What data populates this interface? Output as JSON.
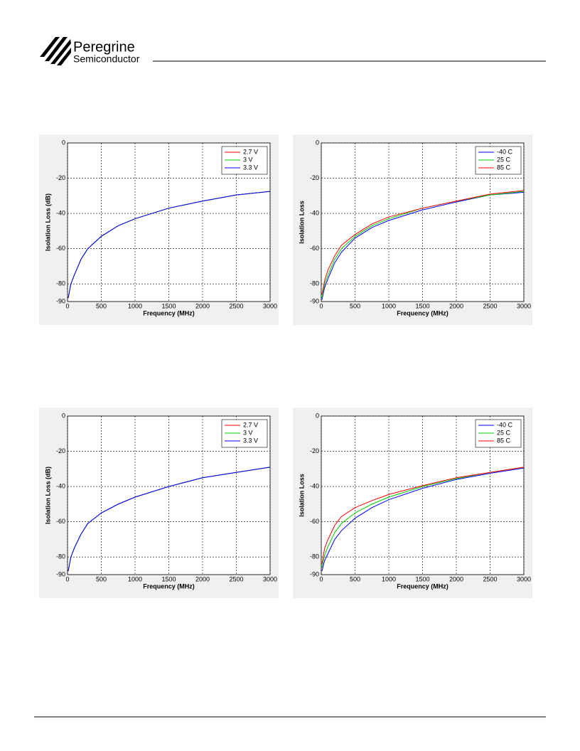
{
  "header": {
    "brand": "Peregrine",
    "subbrand": "Semiconductor"
  },
  "chart_data": [
    {
      "type": "line",
      "xlabel": "Frequency (MHz)",
      "ylabel": "Isolation Loss (dB)",
      "x": [
        10,
        50,
        100,
        200,
        300,
        500,
        750,
        1000,
        1500,
        2000,
        2500,
        3000
      ],
      "xlim": [
        0,
        3000
      ],
      "xticks": [
        0,
        500,
        1000,
        1500,
        2000,
        2500,
        3000
      ],
      "ylim": [
        -90,
        0
      ],
      "yticks": [
        -90,
        -80,
        -60,
        -40,
        -20,
        0
      ],
      "grid": true,
      "legend": "upper right",
      "series": [
        {
          "name": "2.7 V",
          "color": "#ff0000",
          "values": [
            -88,
            -80,
            -75,
            -66,
            -60,
            -53,
            -47,
            -43,
            -37,
            -33,
            -29.5,
            -27.5
          ]
        },
        {
          "name": "3 V",
          "color": "#00cc00",
          "values": [
            -88,
            -80,
            -75,
            -66,
            -60,
            -53,
            -47,
            -43,
            -37,
            -33,
            -29.5,
            -27.5
          ]
        },
        {
          "name": "3.3 V",
          "color": "#0000ff",
          "values": [
            -88,
            -80,
            -75,
            -66,
            -60,
            -53,
            -47,
            -43,
            -37,
            -33,
            -29.5,
            -27.5
          ]
        }
      ]
    },
    {
      "type": "line",
      "xlabel": "Frequency (MHz)",
      "ylabel": "Isolation Loss",
      "x": [
        10,
        50,
        100,
        200,
        300,
        500,
        750,
        1000,
        1500,
        2000,
        2500,
        3000
      ],
      "xlim": [
        0,
        3000
      ],
      "xticks": [
        0,
        500,
        1000,
        1500,
        2000,
        2500,
        3000
      ],
      "ylim": [
        -90,
        0
      ],
      "yticks": [
        -90,
        -80,
        -60,
        -40,
        -20,
        0
      ],
      "grid": true,
      "legend": "upper right",
      "series": [
        {
          "name": "-40 C",
          "color": "#0000ff",
          "values": [
            -89,
            -82,
            -77,
            -68,
            -62,
            -54,
            -48,
            -44,
            -38,
            -33.5,
            -29.5,
            -28
          ]
        },
        {
          "name": "25 C",
          "color": "#00cc00",
          "values": [
            -88,
            -80,
            -75,
            -66,
            -60,
            -53,
            -47,
            -43,
            -37,
            -33,
            -29.5,
            -27.5
          ]
        },
        {
          "name": "85 C",
          "color": "#ff0000",
          "values": [
            -86,
            -78,
            -72,
            -64,
            -58,
            -52,
            -46,
            -42,
            -37,
            -33,
            -29,
            -27
          ]
        }
      ]
    },
    {
      "type": "line",
      "xlabel": "Frequency (MHz)",
      "ylabel": "Isolation Loss (dB)",
      "x": [
        10,
        50,
        100,
        200,
        300,
        500,
        750,
        1000,
        1500,
        2000,
        2500,
        3000
      ],
      "xlim": [
        0,
        3000
      ],
      "xticks": [
        0,
        500,
        1000,
        1500,
        2000,
        2500,
        3000
      ],
      "ylim": [
        -90,
        0
      ],
      "yticks": [
        -90,
        -80,
        -60,
        -40,
        -20,
        0
      ],
      "grid": true,
      "legend": "upper right",
      "series": [
        {
          "name": "2.7 V",
          "color": "#ff0000",
          "values": [
            -88,
            -80,
            -75,
            -67,
            -61,
            -55,
            -50,
            -46,
            -40,
            -35,
            -32,
            -29
          ]
        },
        {
          "name": "3 V",
          "color": "#00cc00",
          "values": [
            -88,
            -80,
            -75,
            -67,
            -61,
            -55,
            -50,
            -46,
            -40,
            -35,
            -32,
            -29
          ]
        },
        {
          "name": "3.3 V",
          "color": "#0000ff",
          "values": [
            -88,
            -80,
            -75,
            -67,
            -61,
            -55,
            -50,
            -46,
            -40,
            -35,
            -32,
            -29
          ]
        }
      ]
    },
    {
      "type": "line",
      "xlabel": "Frequency (MHz)",
      "ylabel": "Isolation Loss",
      "x": [
        10,
        50,
        100,
        200,
        300,
        500,
        750,
        1000,
        1500,
        2000,
        2500,
        3000
      ],
      "xlim": [
        0,
        3000
      ],
      "xticks": [
        0,
        500,
        1000,
        1500,
        2000,
        2500,
        3000
      ],
      "ylim": [
        -90,
        0
      ],
      "yticks": [
        -90,
        -80,
        -60,
        -40,
        -20,
        0
      ],
      "grid": true,
      "legend": "upper right",
      "series": [
        {
          "name": "-40 C",
          "color": "#0000ff",
          "values": [
            -88,
            -82,
            -78,
            -70,
            -65,
            -58,
            -52,
            -47.5,
            -41,
            -36,
            -32.5,
            -29.5
          ]
        },
        {
          "name": "25 C",
          "color": "#00cc00",
          "values": [
            -86,
            -79,
            -74,
            -66,
            -61,
            -55,
            -50,
            -46,
            -40,
            -35.5,
            -32,
            -29
          ]
        },
        {
          "name": "85 C",
          "color": "#ff0000",
          "values": [
            -84,
            -75,
            -70,
            -62,
            -57,
            -52,
            -48,
            -44.5,
            -39.5,
            -35,
            -32,
            -29
          ]
        }
      ]
    }
  ]
}
